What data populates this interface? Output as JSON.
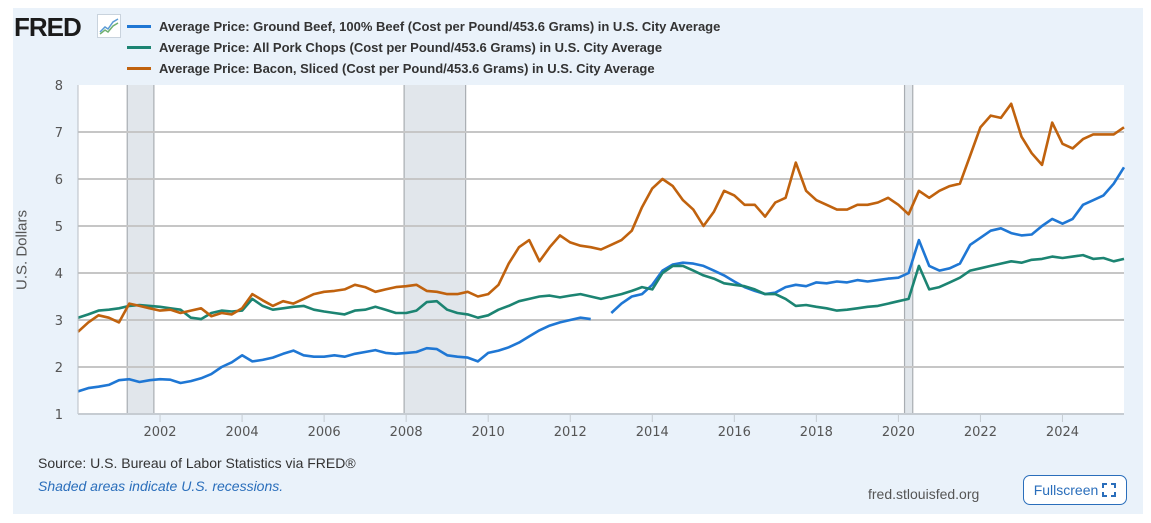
{
  "header": {
    "logo_text": "FRED",
    "logo_icon": "line-chart-icon"
  },
  "footer": {
    "source": "Source: U.S. Bureau of Labor Statistics via FRED®",
    "note": "Shaded areas indicate U.S. recessions.",
    "site": "fred.stlouisfed.org",
    "fullscreen_label": "Fullscreen",
    "fullscreen_icon": "fullscreen-icon"
  },
  "chart_data": {
    "type": "line",
    "title": "",
    "xlabel": "",
    "ylabel": "U.S. Dollars",
    "xlim": [
      2000.0,
      2025.5
    ],
    "ylim": [
      1,
      8
    ],
    "grid": true,
    "legend_position": "top-left",
    "x_ticks": [
      "2002",
      "2004",
      "2006",
      "2008",
      "2010",
      "2012",
      "2014",
      "2016",
      "2018",
      "2020",
      "2022",
      "2024"
    ],
    "y_ticks": [
      "1",
      "2",
      "3",
      "4",
      "5",
      "6",
      "7",
      "8"
    ],
    "recessions": [
      {
        "start": 2001.2,
        "end": 2001.85
      },
      {
        "start": 2007.95,
        "end": 2009.45
      },
      {
        "start": 2020.15,
        "end": 2020.35
      }
    ],
    "x": [
      2000.0,
      2000.25,
      2000.5,
      2000.75,
      2001.0,
      2001.25,
      2001.5,
      2001.75,
      2002.0,
      2002.25,
      2002.5,
      2002.75,
      2003.0,
      2003.25,
      2003.5,
      2003.75,
      2004.0,
      2004.25,
      2004.5,
      2004.75,
      2005.0,
      2005.25,
      2005.5,
      2005.75,
      2006.0,
      2006.25,
      2006.5,
      2006.75,
      2007.0,
      2007.25,
      2007.5,
      2007.75,
      2008.0,
      2008.25,
      2008.5,
      2008.75,
      2009.0,
      2009.25,
      2009.5,
      2009.75,
      2010.0,
      2010.25,
      2010.5,
      2010.75,
      2011.0,
      2011.25,
      2011.5,
      2011.75,
      2012.0,
      2012.25,
      2012.5,
      2012.75,
      2013.0,
      2013.25,
      2013.5,
      2013.75,
      2014.0,
      2014.25,
      2014.5,
      2014.75,
      2015.0,
      2015.25,
      2015.5,
      2015.75,
      2016.0,
      2016.25,
      2016.5,
      2016.75,
      2017.0,
      2017.25,
      2017.5,
      2017.75,
      2018.0,
      2018.25,
      2018.5,
      2018.75,
      2019.0,
      2019.25,
      2019.5,
      2019.75,
      2020.0,
      2020.25,
      2020.5,
      2020.75,
      2021.0,
      2021.25,
      2021.5,
      2021.75,
      2022.0,
      2022.25,
      2022.5,
      2022.75,
      2023.0,
      2023.25,
      2023.5,
      2023.75,
      2024.0,
      2024.25,
      2024.5,
      2024.75,
      2025.0,
      2025.25,
      2025.5
    ],
    "series": [
      {
        "name": "Average Price: Ground Beef, 100% Beef (Cost per Pound/453.6 Grams) in U.S. City Average",
        "color": "#1f77d4",
        "values": [
          1.48,
          1.55,
          1.58,
          1.62,
          1.72,
          1.74,
          1.68,
          1.72,
          1.74,
          1.73,
          1.66,
          1.7,
          1.76,
          1.85,
          2.0,
          2.1,
          2.25,
          2.12,
          2.15,
          2.2,
          2.28,
          2.35,
          2.25,
          2.22,
          2.22,
          2.25,
          2.22,
          2.28,
          2.32,
          2.36,
          2.3,
          2.28,
          2.3,
          2.32,
          2.4,
          2.38,
          2.25,
          2.22,
          2.2,
          2.12,
          2.3,
          2.35,
          2.42,
          2.52,
          2.65,
          2.78,
          2.88,
          2.95,
          3.0,
          3.05,
          3.02,
          null,
          3.15,
          3.35,
          3.5,
          3.55,
          3.75,
          4.05,
          4.18,
          4.22,
          4.2,
          4.15,
          4.05,
          3.95,
          3.82,
          3.7,
          3.62,
          3.55,
          3.58,
          3.7,
          3.75,
          3.72,
          3.8,
          3.78,
          3.82,
          3.8,
          3.85,
          3.82,
          3.85,
          3.88,
          3.9,
          4.0,
          4.7,
          4.15,
          4.05,
          4.1,
          4.2,
          4.6,
          4.75,
          4.9,
          4.95,
          4.85,
          4.8,
          4.82,
          5.0,
          5.15,
          5.05,
          5.15,
          5.45,
          5.55,
          5.65,
          5.9,
          6.25
        ]
      },
      {
        "name": "Average Price: All Pork Chops (Cost per Pound/453.6 Grams) in U.S. City Average",
        "color": "#1c8472",
        "values": [
          3.05,
          3.12,
          3.2,
          3.22,
          3.25,
          3.3,
          3.32,
          3.3,
          3.28,
          3.25,
          3.22,
          3.05,
          3.02,
          3.15,
          3.2,
          3.18,
          3.2,
          3.45,
          3.3,
          3.22,
          3.25,
          3.28,
          3.3,
          3.22,
          3.18,
          3.15,
          3.12,
          3.2,
          3.22,
          3.28,
          3.22,
          3.15,
          3.15,
          3.2,
          3.38,
          3.4,
          3.22,
          3.15,
          3.12,
          3.05,
          3.1,
          3.22,
          3.3,
          3.4,
          3.45,
          3.5,
          3.52,
          3.48,
          3.52,
          3.55,
          3.5,
          3.45,
          3.5,
          3.55,
          3.62,
          3.7,
          3.65,
          4.0,
          4.15,
          4.15,
          4.05,
          3.95,
          3.88,
          3.78,
          3.75,
          3.72,
          3.65,
          3.55,
          3.55,
          3.45,
          3.3,
          3.32,
          3.28,
          3.25,
          3.2,
          3.22,
          3.25,
          3.28,
          3.3,
          3.35,
          3.4,
          3.45,
          4.15,
          3.65,
          3.7,
          3.8,
          3.9,
          4.05,
          4.1,
          4.15,
          4.2,
          4.25,
          4.22,
          4.28,
          4.3,
          4.35,
          4.32,
          4.35,
          4.38,
          4.3,
          4.32,
          4.25,
          4.3
        ]
      },
      {
        "name": "Average Price: Bacon, Sliced (Cost per Pound/453.6 Grams) in U.S. City Average",
        "color": "#c0620e",
        "values": [
          2.75,
          2.95,
          3.1,
          3.05,
          2.95,
          3.35,
          3.3,
          3.25,
          3.2,
          3.22,
          3.15,
          3.2,
          3.25,
          3.08,
          3.15,
          3.12,
          3.25,
          3.55,
          3.42,
          3.3,
          3.4,
          3.35,
          3.45,
          3.55,
          3.6,
          3.62,
          3.65,
          3.75,
          3.7,
          3.6,
          3.65,
          3.7,
          3.72,
          3.75,
          3.62,
          3.6,
          3.55,
          3.55,
          3.6,
          3.5,
          3.55,
          3.75,
          4.2,
          4.55,
          4.7,
          4.25,
          4.55,
          4.8,
          4.65,
          4.58,
          4.55,
          4.5,
          4.6,
          4.7,
          4.9,
          5.4,
          5.8,
          6.0,
          5.85,
          5.55,
          5.35,
          5.0,
          5.3,
          5.75,
          5.65,
          5.45,
          5.45,
          5.2,
          5.5,
          5.6,
          6.35,
          5.75,
          5.55,
          5.45,
          5.35,
          5.35,
          5.45,
          5.45,
          5.5,
          5.6,
          5.45,
          5.25,
          5.75,
          5.6,
          5.75,
          5.85,
          5.9,
          6.5,
          7.1,
          7.35,
          7.3,
          7.6,
          6.9,
          6.55,
          6.3,
          7.2,
          6.75,
          6.65,
          6.85,
          6.95,
          6.95,
          6.95,
          7.1
        ]
      }
    ]
  }
}
